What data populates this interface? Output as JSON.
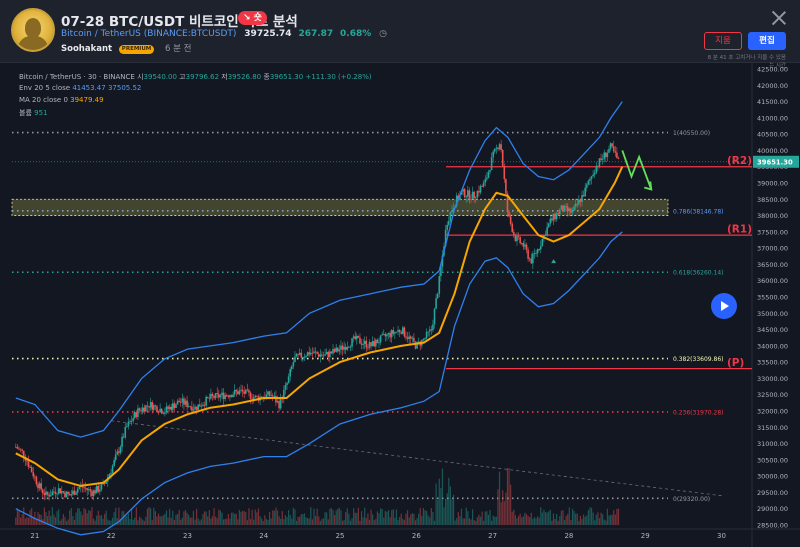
{
  "header": {
    "title": "07-28 BTC/USDT 비트코인 차트 분석",
    "badge": "↘ 숏",
    "symbol_name": "Bitcoin / TetherUS",
    "symbol_code": "(BINANCE:BTCUSDT)",
    "price": "39725.74",
    "change": "267.87",
    "change_pct": "0.68%",
    "author": "Soohakant",
    "author_badge": "PREMIUM",
    "time_ago": "6 분 전",
    "delete_label": "지움",
    "edit_label": "편집",
    "updated_note": "8 분 41 초 고치거나 지울 수 있음",
    "updated_note_2": "는 시간"
  },
  "legend": {
    "line1": "Bitcoin / TetherUS · 30 · BINANCE",
    "ohlc": [
      {
        "label": "시",
        "value": "39540.00"
      },
      {
        "label": "고",
        "value": "39796.62"
      },
      {
        "label": "저",
        "value": "39526.80"
      },
      {
        "label": "종",
        "value": "39651.30"
      }
    ],
    "change": "+111.30 (+0.28%)",
    "env_label": "Env 20 5 close",
    "env_upper": "41453.47",
    "env_lower": "37505.52",
    "ma_label": "MA 20 close 0",
    "ma_value": "39479.49",
    "vol_label": "볼륨",
    "vol_value": "951"
  },
  "colors": {
    "background": "#131722",
    "up": "#26a69a",
    "down": "#ef5350",
    "band": "#2f80ed",
    "ma": "#f7a600",
    "level_red": "#f23645",
    "fib_gray": "#9598a1",
    "fib_green": "#26a69a",
    "fib_yellow": "#f5f5b8",
    "fib_red": "#f23645"
  },
  "icons": {
    "close": "close-icon",
    "clock": "clock-icon",
    "play": "play-icon"
  },
  "chart_data": {
    "type": "candlestick",
    "y_axis": {
      "min": 28500,
      "max": 42500,
      "step": 500,
      "labels": [
        "42500.00",
        "42000.00",
        "41500.00",
        "41000.00",
        "40500.00",
        "40000.00",
        "39500.00",
        "39000.00",
        "38500.00",
        "38000.00",
        "37500.00",
        "37000.00",
        "36500.00",
        "36000.00",
        "35500.00",
        "35000.00",
        "34500.00",
        "34000.00",
        "33500.00",
        "33000.00",
        "32500.00",
        "32000.00",
        "31500.00",
        "31000.00",
        "30500.00",
        "30000.00",
        "29500.00",
        "29000.00",
        "28500.00"
      ]
    },
    "x_axis": {
      "labels": [
        "21",
        "22",
        "23",
        "24",
        "25",
        "26",
        "27",
        "28",
        "29",
        "30"
      ],
      "x_min": 20.7,
      "x_max": 30.4
    },
    "current_price": "39651.30",
    "fib_levels": [
      {
        "label": "1(40550.00)",
        "value": 40550,
        "color": "gray"
      },
      {
        "label": "0.786(38146.78)",
        "value": 38146.78,
        "color": "blue-zone"
      },
      {
        "label": "0.618(36260.14)",
        "value": 36260.14,
        "color": "green"
      },
      {
        "label": "0.382(33609.86)",
        "value": 33609.86,
        "color": "yellow"
      },
      {
        "label": "0.236(31970.28)",
        "value": 31970.28,
        "color": "red"
      },
      {
        "label": "0(29320.00)",
        "value": 29320,
        "color": "gray"
      }
    ],
    "levels": [
      {
        "label": "(R2)",
        "value": 39500
      },
      {
        "label": "(R1)",
        "value": 37400
      },
      {
        "label": "(P)",
        "value": 33300
      }
    ],
    "zone": {
      "from": 38500,
      "to": 38000
    },
    "close_path": [
      [
        20.75,
        30900
      ],
      [
        20.85,
        30700
      ],
      [
        20.95,
        30200
      ],
      [
        21.05,
        29700
      ],
      [
        21.15,
        29400
      ],
      [
        21.3,
        29600
      ],
      [
        21.45,
        29400
      ],
      [
        21.6,
        29700
      ],
      [
        21.75,
        29500
      ],
      [
        21.9,
        29700
      ],
      [
        22.0,
        30200
      ],
      [
        22.1,
        30800
      ],
      [
        22.2,
        31500
      ],
      [
        22.35,
        32000
      ],
      [
        22.5,
        32200
      ],
      [
        22.7,
        32000
      ],
      [
        22.9,
        32300
      ],
      [
        23.1,
        32100
      ],
      [
        23.3,
        32400
      ],
      [
        23.5,
        32500
      ],
      [
        23.7,
        32600
      ],
      [
        23.9,
        32400
      ],
      [
        24.1,
        32500
      ],
      [
        24.2,
        32200
      ],
      [
        24.3,
        32800
      ],
      [
        24.4,
        33600
      ],
      [
        24.6,
        33800
      ],
      [
        24.8,
        33700
      ],
      [
        25.0,
        33900
      ],
      [
        25.2,
        34200
      ],
      [
        25.4,
        34000
      ],
      [
        25.6,
        34300
      ],
      [
        25.8,
        34500
      ],
      [
        26.0,
        34000
      ],
      [
        26.1,
        34200
      ],
      [
        26.2,
        34500
      ],
      [
        26.3,
        36000
      ],
      [
        26.4,
        37800
      ],
      [
        26.5,
        38400
      ],
      [
        26.6,
        38700
      ],
      [
        26.75,
        38600
      ],
      [
        26.9,
        39000
      ],
      [
        27.0,
        39800
      ],
      [
        27.1,
        40300
      ],
      [
        27.2,
        38000
      ],
      [
        27.3,
        37300
      ],
      [
        27.4,
        37100
      ],
      [
        27.5,
        36600
      ],
      [
        27.6,
        37000
      ],
      [
        27.75,
        37800
      ],
      [
        27.9,
        38200
      ],
      [
        28.05,
        38100
      ],
      [
        28.2,
        38700
      ],
      [
        28.35,
        39500
      ],
      [
        28.45,
        39800
      ],
      [
        28.55,
        40100
      ],
      [
        28.65,
        39650
      ]
    ],
    "ma_path": [
      [
        20.75,
        30700
      ],
      [
        21.0,
        30400
      ],
      [
        21.3,
        29900
      ],
      [
        21.6,
        29700
      ],
      [
        21.9,
        29800
      ],
      [
        22.1,
        30200
      ],
      [
        22.4,
        31100
      ],
      [
        22.7,
        31600
      ],
      [
        23.0,
        31900
      ],
      [
        23.3,
        32100
      ],
      [
        23.6,
        32200
      ],
      [
        24.0,
        32400
      ],
      [
        24.3,
        32400
      ],
      [
        24.6,
        33000
      ],
      [
        25.0,
        33500
      ],
      [
        25.4,
        33800
      ],
      [
        25.8,
        34000
      ],
      [
        26.1,
        34100
      ],
      [
        26.3,
        34400
      ],
      [
        26.5,
        35600
      ],
      [
        26.7,
        37200
      ],
      [
        26.9,
        38200
      ],
      [
        27.05,
        38700
      ],
      [
        27.2,
        38600
      ],
      [
        27.4,
        38000
      ],
      [
        27.6,
        37400
      ],
      [
        27.8,
        37200
      ],
      [
        28.0,
        37400
      ],
      [
        28.2,
        37800
      ],
      [
        28.4,
        38200
      ],
      [
        28.6,
        39000
      ],
      [
        28.7,
        39500
      ]
    ],
    "upper_band_path": [
      [
        20.75,
        32400
      ],
      [
        21.0,
        32200
      ],
      [
        21.3,
        31400
      ],
      [
        21.6,
        31200
      ],
      [
        21.9,
        31400
      ],
      [
        22.1,
        32000
      ],
      [
        22.4,
        33000
      ],
      [
        22.7,
        33600
      ],
      [
        23.0,
        33900
      ],
      [
        23.3,
        34000
      ],
      [
        23.6,
        34100
      ],
      [
        24.0,
        34300
      ],
      [
        24.3,
        34400
      ],
      [
        24.6,
        35000
      ],
      [
        25.0,
        35400
      ],
      [
        25.4,
        35600
      ],
      [
        25.8,
        35800
      ],
      [
        26.1,
        35900
      ],
      [
        26.3,
        36300
      ],
      [
        26.5,
        38200
      ],
      [
        26.7,
        39400
      ],
      [
        26.9,
        40300
      ],
      [
        27.05,
        40700
      ],
      [
        27.2,
        40400
      ],
      [
        27.4,
        39600
      ],
      [
        27.6,
        39200
      ],
      [
        27.8,
        39100
      ],
      [
        28.0,
        39400
      ],
      [
        28.2,
        39900
      ],
      [
        28.4,
        40400
      ],
      [
        28.55,
        41000
      ],
      [
        28.7,
        41500
      ]
    ],
    "lower_band_path": [
      [
        20.75,
        29000
      ],
      [
        21.0,
        28700
      ],
      [
        21.3,
        28400
      ],
      [
        21.6,
        28200
      ],
      [
        21.9,
        28300
      ],
      [
        22.1,
        28600
      ],
      [
        22.4,
        29300
      ],
      [
        22.7,
        29800
      ],
      [
        23.0,
        30100
      ],
      [
        23.3,
        30300
      ],
      [
        23.6,
        30400
      ],
      [
        24.0,
        30600
      ],
      [
        24.3,
        30600
      ],
      [
        24.6,
        31000
      ],
      [
        25.0,
        31600
      ],
      [
        25.4,
        31900
      ],
      [
        25.8,
        32100
      ],
      [
        26.1,
        32300
      ],
      [
        26.3,
        32600
      ],
      [
        26.5,
        34600
      ],
      [
        26.7,
        35900
      ],
      [
        26.9,
        36600
      ],
      [
        27.05,
        36700
      ],
      [
        27.2,
        36400
      ],
      [
        27.4,
        35600
      ],
      [
        27.6,
        35200
      ],
      [
        27.8,
        35300
      ],
      [
        28.0,
        35700
      ],
      [
        28.2,
        36200
      ],
      [
        28.4,
        36700
      ],
      [
        28.55,
        37200
      ],
      [
        28.7,
        37500
      ]
    ],
    "trend_line": [
      [
        22.0,
        31700
      ],
      [
        30.0,
        29400
      ]
    ],
    "projection_arrow": [
      [
        28.7,
        40000
      ],
      [
        28.82,
        39200
      ],
      [
        28.92,
        39800
      ],
      [
        29.08,
        38800
      ]
    ]
  }
}
